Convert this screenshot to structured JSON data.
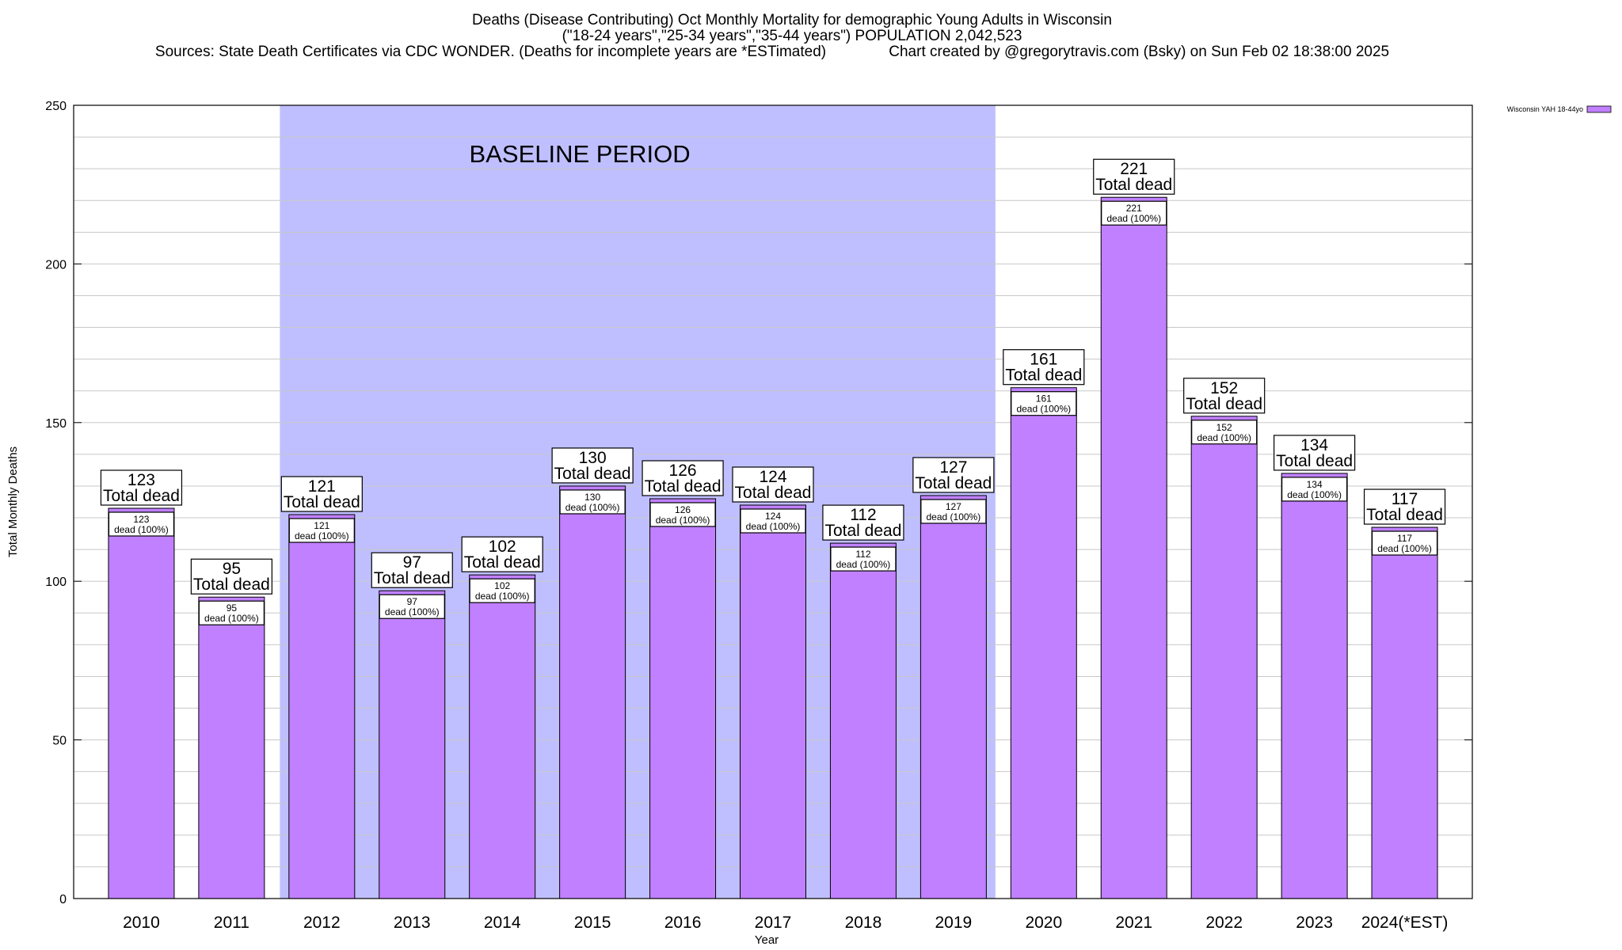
{
  "chart_data": {
    "type": "bar",
    "title_lines": [
      "Deaths (Disease Contributing) Oct Monthly Mortality for demographic Young Adults in Wisconsin",
      "(\"18-24 years\",\"25-34 years\",\"35-44 years\") POPULATION 2,042,523",
      "Sources: State Death Certificates via CDC WONDER. (Deaths for incomplete years are *ESTimated)               Chart created by @gregorytravis.com (Bsky) on Sun Feb 02 18:38:00 2025"
    ],
    "xlabel": "Year",
    "ylabel": "Total Monthly Deaths",
    "ylim": [
      0,
      250
    ],
    "yticks": [
      "0",
      "50",
      "100",
      "150",
      "200",
      "250"
    ],
    "categories": [
      "2010",
      "2011",
      "2012",
      "2013",
      "2014",
      "2015",
      "2016",
      "2017",
      "2018",
      "2019",
      "2020",
      "2021",
      "2022",
      "2023",
      "2024(*EST)"
    ],
    "series": [
      {
        "name": "Wisconsin YAH 18-44yo",
        "values": [
          123,
          95,
          121,
          97,
          102,
          130,
          126,
          124,
          112,
          127,
          161,
          221,
          152,
          134,
          117
        ]
      }
    ],
    "top_labels": [
      "123",
      "95",
      "121",
      "97",
      "102",
      "130",
      "126",
      "124",
      "112",
      "127",
      "161",
      "221",
      "152",
      "134",
      "117"
    ],
    "top_label_suffix": "Total dead",
    "inner_labels": [
      "123",
      "95",
      "121",
      "97",
      "102",
      "130",
      "126",
      "124",
      "112",
      "127",
      "161",
      "221",
      "152",
      "134",
      "117"
    ],
    "inner_label_suffix": "dead (100%)",
    "baseline_period": {
      "label": "BASELINE PERIOD",
      "start": "2012",
      "end": "2019"
    },
    "legend_position": "top-right",
    "grid": true,
    "colors": {
      "bar": "#c080ff",
      "baseline": "#bfbfff",
      "axis": "#000000",
      "grid": "#c8c8c8"
    }
  }
}
